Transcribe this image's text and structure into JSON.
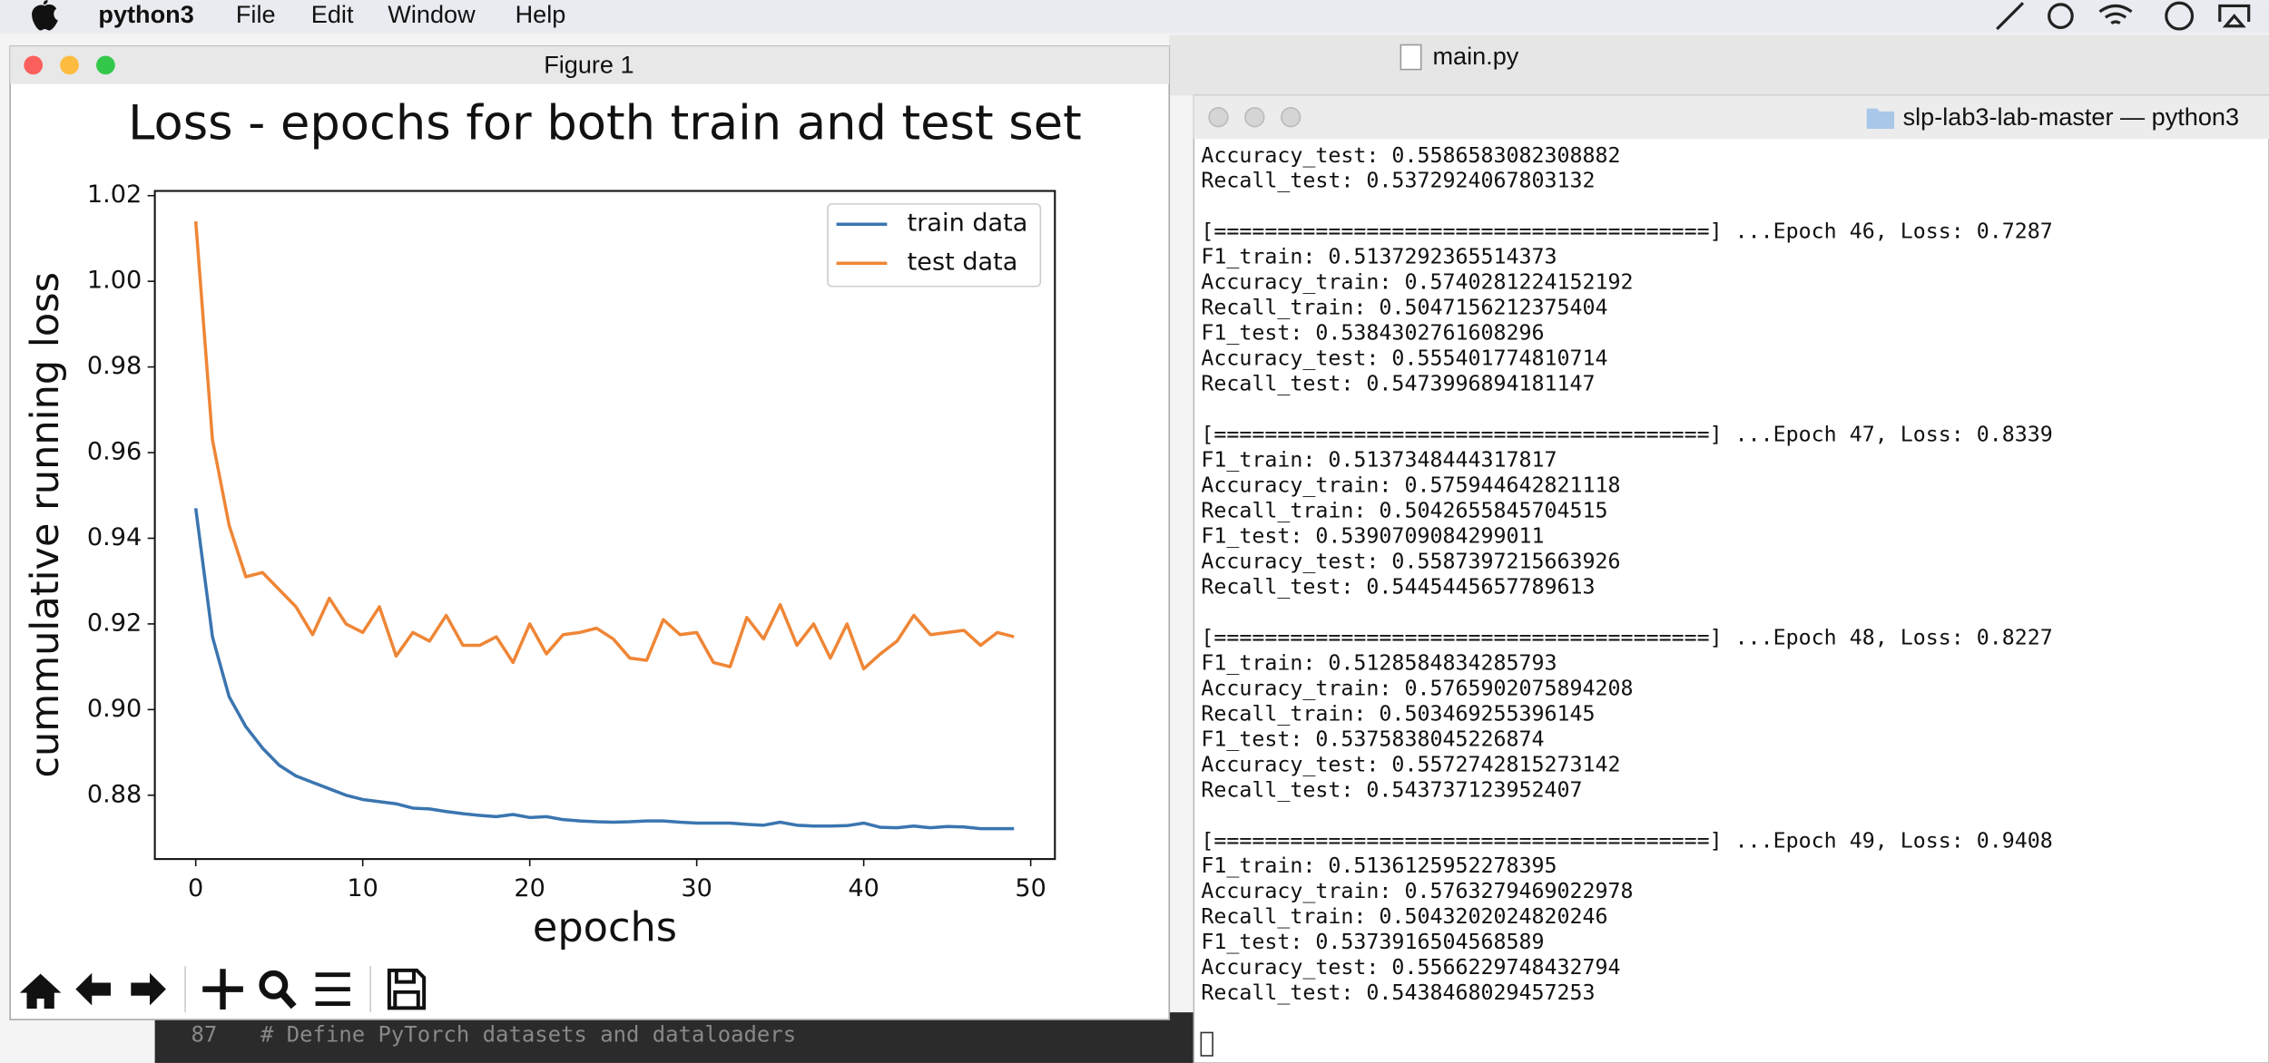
{
  "menu_bar": {
    "app": "python3",
    "items": [
      "File",
      "Edit",
      "Window",
      "Help"
    ]
  },
  "editor": {
    "tab_title": "main.py",
    "line_number": "87",
    "code": "# Define PyTorch datasets and dataloaders"
  },
  "figure_window": {
    "title": "Figure 1"
  },
  "chart_data": {
    "type": "line",
    "title": "Loss - epochs for both train and test set",
    "x_label": "epochs",
    "y_label": "cummulative running loss",
    "x": [
      0,
      1,
      2,
      3,
      4,
      5,
      6,
      7,
      8,
      9,
      10,
      11,
      12,
      13,
      14,
      15,
      16,
      17,
      18,
      19,
      20,
      21,
      22,
      23,
      24,
      25,
      26,
      27,
      28,
      29,
      30,
      31,
      32,
      33,
      34,
      35,
      36,
      37,
      38,
      39,
      40,
      41,
      42,
      43,
      44,
      45,
      46,
      47,
      48,
      49
    ],
    "series": [
      {
        "name": "train data",
        "color": "#3a75b0",
        "values": [
          0.947,
          0.917,
          0.903,
          0.896,
          0.891,
          0.887,
          0.8845,
          0.883,
          0.8815,
          0.88,
          0.879,
          0.8785,
          0.878,
          0.877,
          0.8768,
          0.8762,
          0.8757,
          0.8753,
          0.875,
          0.8755,
          0.8748,
          0.875,
          0.8743,
          0.874,
          0.8738,
          0.8737,
          0.8738,
          0.874,
          0.874,
          0.8737,
          0.8735,
          0.8735,
          0.8735,
          0.8732,
          0.873,
          0.8737,
          0.873,
          0.8728,
          0.8728,
          0.8729,
          0.8735,
          0.8725,
          0.8724,
          0.8728,
          0.8724,
          0.8727,
          0.8726,
          0.8722,
          0.8722,
          0.8722
        ]
      },
      {
        "name": "test data",
        "color": "#ef8636",
        "values": [
          1.014,
          0.963,
          0.943,
          0.931,
          0.932,
          0.928,
          0.924,
          0.9175,
          0.926,
          0.92,
          0.918,
          0.924,
          0.9125,
          0.918,
          0.916,
          0.922,
          0.915,
          0.915,
          0.917,
          0.911,
          0.92,
          0.913,
          0.9175,
          0.918,
          0.919,
          0.9165,
          0.912,
          0.9115,
          0.921,
          0.9175,
          0.918,
          0.911,
          0.91,
          0.9215,
          0.9165,
          0.9245,
          0.915,
          0.92,
          0.912,
          0.92,
          0.9095,
          0.913,
          0.916,
          0.922,
          0.9175,
          0.918,
          0.9185,
          0.915,
          0.918,
          0.917
        ]
      }
    ],
    "xlim": [
      -2.45,
      51.45
    ],
    "ylim": [
      0.8651,
      1.0211
    ],
    "xticks": [
      0,
      10,
      20,
      30,
      40,
      50
    ],
    "yticks": [
      0.88,
      {
        "value": 0.9,
        "label": "0.90"
      },
      0.92,
      0.94,
      0.96,
      0.98,
      {
        "value": 1,
        "label": "1.00"
      },
      1.02
    ],
    "legend": "upper right"
  },
  "terminal": {
    "title": "slp-lab3-lab-master — python3",
    "blocks": [
      {
        "lines": [
          "Accuracy_test: 0.5586583082308882",
          "Recall_test: 0.5372924067803132"
        ]
      },
      {
        "progress": " [=======================================] ...Epoch 46, Loss: 0.7287",
        "lines": [
          "F1_train: 0.5137292365514373",
          "Accuracy_train: 0.5740281224152192",
          "Recall_train: 0.5047156212375404",
          "F1_test: 0.5384302761608296",
          "Accuracy_test: 0.555401774810714",
          "Recall_test: 0.5473996894181147"
        ]
      },
      {
        "progress": " [=======================================] ...Epoch 47, Loss: 0.8339",
        "lines": [
          "F1_train: 0.5137348444317817",
          "Accuracy_train: 0.575944642821118",
          "Recall_train: 0.5042655845704515",
          "F1_test: 0.5390709084299011",
          "Accuracy_test: 0.5587397215663926",
          "Recall_test: 0.5445445657789613"
        ]
      },
      {
        "progress": " [=======================================] ...Epoch 48, Loss: 0.8227",
        "lines": [
          "F1_train: 0.5128584834285793",
          "Accuracy_train: 0.5765902075894208",
          "Recall_train: 0.503469255396145",
          "F1_test: 0.5375838045226874",
          "Accuracy_test: 0.5572742815273142",
          "Recall_test: 0.543737123952407"
        ]
      },
      {
        "progress": " [=======================================] ...Epoch 49, Loss: 0.9408",
        "lines": [
          "F1_train: 0.5136125952278395",
          "Accuracy_train: 0.5763279469022978",
          "Recall_train: 0.5043202024820246",
          "F1_test: 0.5373916504568589",
          "Accuracy_test: 0.5566229748432794",
          "Recall_test: 0.5438468029457253"
        ]
      }
    ]
  }
}
